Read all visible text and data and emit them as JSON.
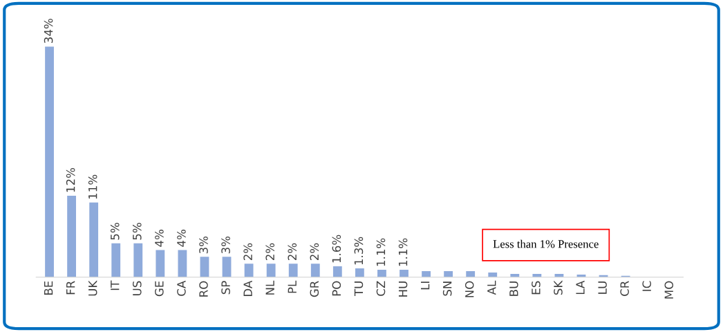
{
  "chart_data": {
    "type": "bar",
    "categories": [
      "BE",
      "FR",
      "UK",
      "IT",
      "US",
      "GE",
      "CA",
      "RO",
      "SP",
      "DA",
      "NL",
      "PL",
      "GR",
      "PO",
      "TU",
      "CZ",
      "HU",
      "LI",
      "SN",
      "NO",
      "AL",
      "BU",
      "ES",
      "SK",
      "LA",
      "LU",
      "CR",
      "IC",
      "MO"
    ],
    "values": [
      34,
      12,
      11,
      5,
      5,
      4,
      4,
      3,
      3,
      2,
      2,
      2,
      2,
      1.6,
      1.3,
      1.1,
      1.1,
      0.9,
      0.9,
      0.9,
      0.7,
      0.5,
      0.5,
      0.5,
      0.4,
      0.3,
      0.2,
      0,
      0
    ],
    "value_labels": [
      "34%",
      "12%",
      "11%",
      "5%",
      "5%",
      "4%",
      "4%",
      "3%",
      "3%",
      "2%",
      "2%",
      "2%",
      "2%",
      "1.6%",
      "1.3%",
      "1.1%",
      "1.1%",
      null,
      null,
      null,
      null,
      null,
      null,
      null,
      null,
      null,
      null,
      null,
      null
    ],
    "color": "#8eaadb",
    "annotations": [
      "Less than 1% Presence"
    ],
    "grid": false,
    "legend": false
  }
}
